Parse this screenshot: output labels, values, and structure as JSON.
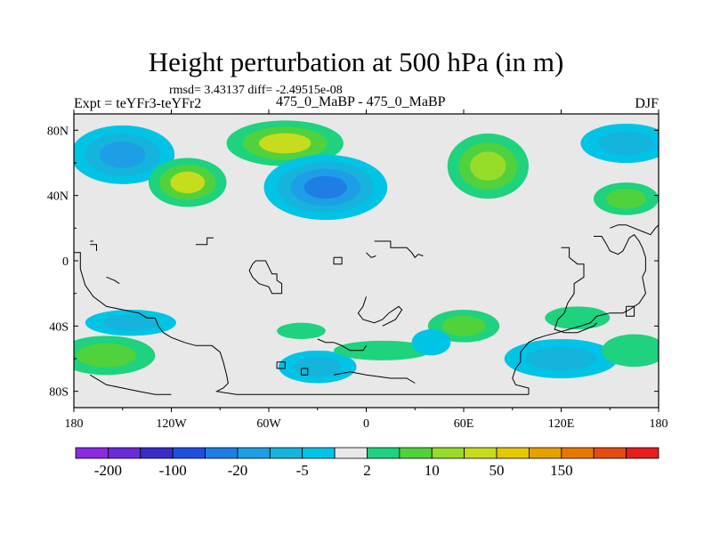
{
  "chart_data": {
    "type": "heatmap",
    "title": "Height perturbation at 500 hPa (in m)",
    "stats_line": "rmsd= 3.43137 diff= -2.49515e-08",
    "left_label": "Expt = teYFr3-teYFr2",
    "center_label": "475_0_MaBP - 475_0_MaBP",
    "right_label": "DJF",
    "x_ticks": [
      {
        "value": -180,
        "label": "180"
      },
      {
        "value": -120,
        "label": "120W"
      },
      {
        "value": -60,
        "label": "60W"
      },
      {
        "value": 0,
        "label": "0"
      },
      {
        "value": 60,
        "label": "60E"
      },
      {
        "value": 120,
        "label": "120E"
      },
      {
        "value": 180,
        "label": "180"
      }
    ],
    "y_ticks": [
      {
        "value": 80,
        "label": "80N"
      },
      {
        "value": 40,
        "label": "40N"
      },
      {
        "value": 0,
        "label": "0"
      },
      {
        "value": -40,
        "label": "40S"
      },
      {
        "value": -80,
        "label": "80S"
      }
    ],
    "xlim": [
      -180,
      180
    ],
    "ylim": [
      -90,
      90
    ],
    "colorbar": {
      "colors": [
        "#8a2be2",
        "#6a2ad8",
        "#3a2cc8",
        "#1e50e0",
        "#1e7ee6",
        "#1e9ee6",
        "#14b4dc",
        "#00c4e6",
        "#e8e8e8",
        "#1ed27e",
        "#50d23c",
        "#96dc28",
        "#c8dc1e",
        "#e6c800",
        "#e6a000",
        "#e67800",
        "#e64b14",
        "#e61e1e"
      ],
      "labels": [
        {
          "boundary": 1,
          "text": "-200"
        },
        {
          "boundary": 3,
          "text": "-100"
        },
        {
          "boundary": 5,
          "text": "-20"
        },
        {
          "boundary": 7,
          "text": "-5"
        },
        {
          "boundary": 9,
          "text": "2"
        },
        {
          "boundary": 11,
          "text": "10"
        },
        {
          "boundary": 13,
          "text": "50"
        },
        {
          "boundary": 15,
          "text": "150"
        }
      ]
    },
    "anomaly_regions": [
      {
        "name": "ne-pacific-low",
        "lon": -150,
        "lat": 65,
        "rlon": 32,
        "rlat": 18,
        "levels": [
          -1,
          -2,
          -3
        ]
      },
      {
        "name": "n-america-high",
        "lon": -110,
        "lat": 48,
        "rlon": 24,
        "rlat": 15,
        "levels": [
          1,
          2,
          4
        ]
      },
      {
        "name": "greenland-high",
        "lon": -50,
        "lat": 72,
        "rlon": 36,
        "rlat": 14,
        "levels": [
          1,
          2,
          4
        ]
      },
      {
        "name": "n-atlantic-low",
        "lon": -25,
        "lat": 45,
        "rlon": 38,
        "rlat": 20,
        "levels": [
          -1,
          -2,
          -3,
          -4
        ]
      },
      {
        "name": "urals-high",
        "lon": 75,
        "lat": 58,
        "rlon": 25,
        "rlat": 20,
        "levels": [
          1,
          2,
          3
        ]
      },
      {
        "name": "ne-asia-low",
        "lon": 160,
        "lat": 72,
        "rlon": 28,
        "rlat": 12,
        "levels": [
          -1,
          -2
        ]
      },
      {
        "name": "nw-pacific-high",
        "lon": 160,
        "lat": 38,
        "rlon": 20,
        "rlat": 10,
        "levels": [
          1,
          2
        ]
      },
      {
        "name": "s-pacific-high",
        "lon": -160,
        "lat": -58,
        "rlon": 30,
        "rlat": 12,
        "levels": [
          1,
          2
        ]
      },
      {
        "name": "s-america-low",
        "lon": -145,
        "lat": -38,
        "rlon": 28,
        "rlat": 8,
        "levels": [
          -1,
          -2
        ]
      },
      {
        "name": "s-atlantic-low",
        "lon": -30,
        "lat": -65,
        "rlon": 24,
        "rlat": 10,
        "levels": [
          -1,
          -2
        ]
      },
      {
        "name": "s-atlantic-high",
        "lon": -40,
        "lat": -43,
        "rlon": 15,
        "rlat": 5,
        "levels": [
          1
        ]
      },
      {
        "name": "s-ocean-high",
        "lon": 10,
        "lat": -55,
        "rlon": 30,
        "rlat": 6,
        "levels": [
          1
        ]
      },
      {
        "name": "indian-high",
        "lon": 60,
        "lat": -40,
        "rlon": 22,
        "rlat": 10,
        "levels": [
          1,
          2
        ]
      },
      {
        "name": "s-indian-low",
        "lon": 40,
        "lat": -50,
        "rlon": 12,
        "rlat": 8,
        "levels": [
          -1
        ]
      },
      {
        "name": "australia-low",
        "lon": 120,
        "lat": -60,
        "rlon": 35,
        "rlat": 12,
        "levels": [
          -1,
          -2
        ]
      },
      {
        "name": "nz-high",
        "lon": 165,
        "lat": -55,
        "rlon": 20,
        "rlat": 10,
        "levels": [
          1
        ]
      },
      {
        "name": "australia-high",
        "lon": 130,
        "lat": -35,
        "rlon": 20,
        "rlat": 7,
        "levels": [
          1
        ]
      }
    ]
  }
}
